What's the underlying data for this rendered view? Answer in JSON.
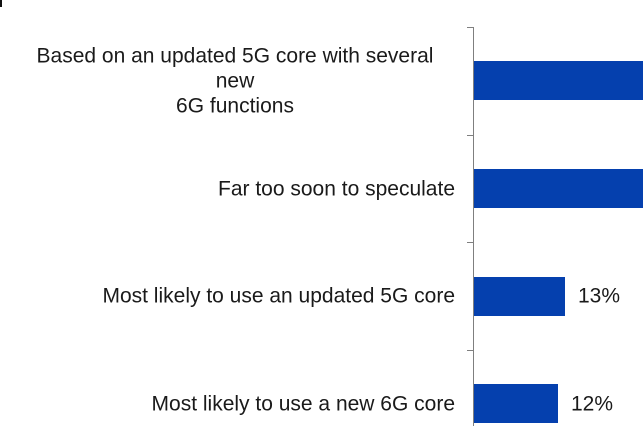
{
  "chart_data": {
    "type": "bar",
    "orientation": "horizontal",
    "title": "",
    "xlabel": "",
    "ylabel": "",
    "legend": null,
    "gridlines": false,
    "axis_line_visible": true,
    "unit": "%",
    "categories": [
      {
        "label": "Based on an updated 5G core with several new 6G functions",
        "label_lines": [
          "Based on an updated 5G core with several new",
          "6G functions"
        ],
        "value": null,
        "value_label": "",
        "clipped_at_right_edge": true
      },
      {
        "label": "Far too soon to speculate",
        "label_lines": [
          "Far too soon to speculate"
        ],
        "value": null,
        "value_label": "",
        "clipped_at_right_edge": true
      },
      {
        "label": "Most likely to use an updated 5G core",
        "label_lines": [
          "Most likely to use an updated 5G core"
        ],
        "value": 13,
        "value_label": "13%",
        "clipped_at_right_edge": false
      },
      {
        "label": "Most likely to use a new 6G core",
        "label_lines": [
          "Most likely to use a new 6G core"
        ],
        "value": 12,
        "value_label": "12%",
        "clipped_at_right_edge": false
      }
    ],
    "colors": {
      "bar": "#0540AE",
      "axis": "#7F7F7F",
      "text": "#1A1A1A"
    }
  }
}
